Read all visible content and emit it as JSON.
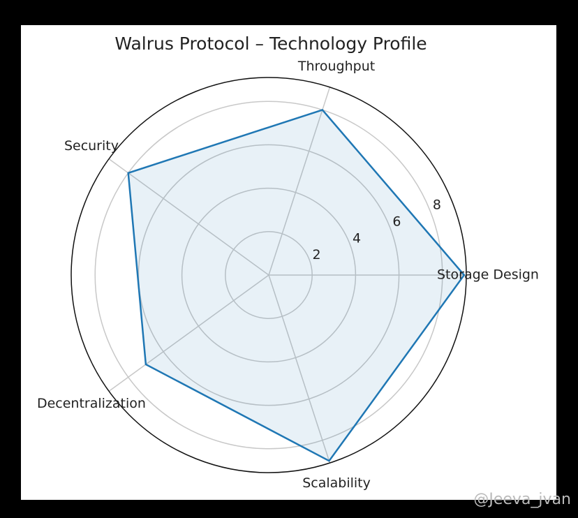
{
  "chart_data": {
    "type": "radar",
    "title": "Walrus Protocol – Technology Profile",
    "categories": [
      "Storage Design",
      "Throughput",
      "Security",
      "Decentralization",
      "Scalability"
    ],
    "series": [
      {
        "name": "Walrus Protocol",
        "color": "#1f77b4",
        "values": [
          9,
          8,
          8,
          7,
          9
        ]
      }
    ],
    "ylim": [
      0,
      9.1
    ],
    "yticks": [
      2,
      4,
      6,
      8
    ],
    "grid": true
  },
  "watermark": "@Jeeva_jvan"
}
